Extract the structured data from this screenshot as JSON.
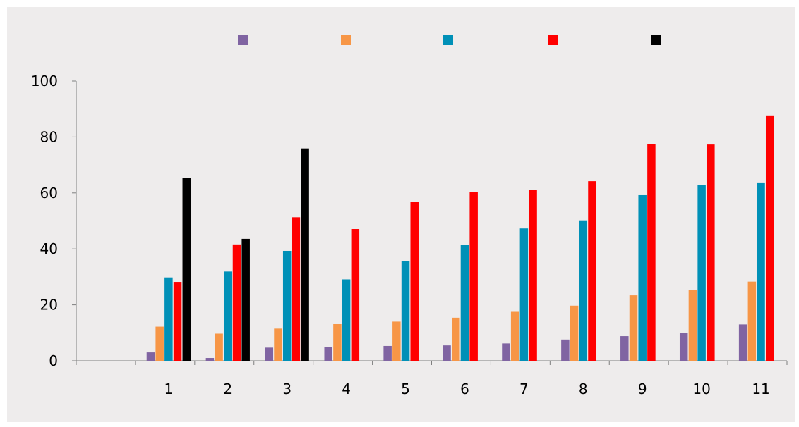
{
  "chart_data": {
    "type": "bar",
    "title": "",
    "xlabel": "",
    "ylabel": "",
    "ylim": [
      0,
      100
    ],
    "yticks": [
      0,
      20,
      40,
      60,
      80,
      100
    ],
    "grid": false,
    "legend": "top",
    "categories": [
      "",
      "1",
      "2",
      "3",
      "4",
      "5",
      "6",
      "7",
      "8",
      "9",
      "10",
      "11"
    ],
    "series": [
      {
        "color": "#8064a2",
        "values": [
          null,
          3,
          1,
          4.7,
          5,
          5.3,
          5.5,
          6.2,
          7.6,
          8.8,
          10,
          13
        ]
      },
      {
        "color": "#f79646",
        "values": [
          null,
          12.2,
          9.7,
          11.5,
          13.1,
          14,
          15.4,
          17.5,
          19.7,
          23.4,
          25.2,
          28.3
        ]
      },
      {
        "color": "#0090b7",
        "values": [
          null,
          29.8,
          31.9,
          39.3,
          29.1,
          35.7,
          41.4,
          47.3,
          50.2,
          59.2,
          62.8,
          63.5
        ]
      },
      {
        "color": "#ff0000",
        "values": [
          null,
          28.2,
          41.6,
          51.3,
          47.1,
          56.7,
          60.2,
          61.2,
          64.2,
          77.4,
          77.3,
          87.7
        ]
      },
      {
        "color": "#000000",
        "values": [
          null,
          65.3,
          43.6,
          75.9,
          null,
          null,
          null,
          null,
          null,
          null,
          null,
          null
        ]
      }
    ]
  }
}
